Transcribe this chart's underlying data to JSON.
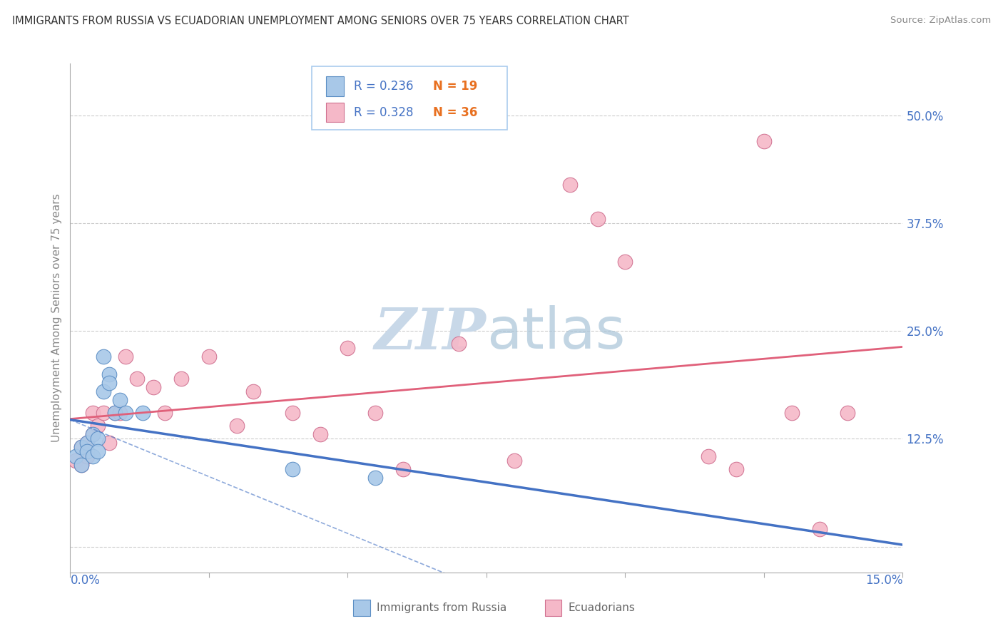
{
  "title": "IMMIGRANTS FROM RUSSIA VS ECUADORIAN UNEMPLOYMENT AMONG SENIORS OVER 75 YEARS CORRELATION CHART",
  "source": "Source: ZipAtlas.com",
  "ylabel": "Unemployment Among Seniors over 75 years",
  "ytick_vals": [
    0.0,
    0.125,
    0.25,
    0.375,
    0.5
  ],
  "ytick_labels": [
    "",
    "12.5%",
    "25.0%",
    "37.5%",
    "50.0%"
  ],
  "xlim": [
    0.0,
    0.15
  ],
  "ylim": [
    -0.03,
    0.56
  ],
  "legend_r1": "R = 0.236",
  "legend_n1": "N = 19",
  "legend_r2": "R = 0.328",
  "legend_n2": "N = 36",
  "color_blue_fill": "#A8C8E8",
  "color_blue_edge": "#5B8EC4",
  "color_pink_fill": "#F5B8C8",
  "color_pink_edge": "#D07090",
  "color_blue_line": "#4472C4",
  "color_pink_line": "#E0607A",
  "color_text_blue": "#4472C4",
  "color_text_orange": "#E87020",
  "watermark_color": "#C8D8E8",
  "blue_x": [
    0.001,
    0.002,
    0.002,
    0.003,
    0.003,
    0.004,
    0.004,
    0.005,
    0.005,
    0.006,
    0.006,
    0.007,
    0.007,
    0.008,
    0.009,
    0.01,
    0.013,
    0.04,
    0.055
  ],
  "blue_y": [
    0.105,
    0.115,
    0.095,
    0.12,
    0.11,
    0.13,
    0.105,
    0.125,
    0.11,
    0.22,
    0.18,
    0.2,
    0.19,
    0.155,
    0.17,
    0.155,
    0.155,
    0.09,
    0.08
  ],
  "pink_x": [
    0.001,
    0.002,
    0.002,
    0.003,
    0.003,
    0.004,
    0.004,
    0.005,
    0.006,
    0.007,
    0.008,
    0.009,
    0.01,
    0.012,
    0.015,
    0.017,
    0.02,
    0.025,
    0.03,
    0.033,
    0.04,
    0.045,
    0.05,
    0.055,
    0.06,
    0.07,
    0.08,
    0.09,
    0.095,
    0.1,
    0.115,
    0.12,
    0.125,
    0.13,
    0.135,
    0.14
  ],
  "pink_y": [
    0.1,
    0.115,
    0.095,
    0.12,
    0.105,
    0.13,
    0.155,
    0.14,
    0.155,
    0.12,
    0.155,
    0.155,
    0.22,
    0.195,
    0.185,
    0.155,
    0.195,
    0.22,
    0.14,
    0.18,
    0.155,
    0.13,
    0.23,
    0.155,
    0.09,
    0.235,
    0.1,
    0.42,
    0.38,
    0.33,
    0.105,
    0.09,
    0.47,
    0.155,
    0.02,
    0.155
  ]
}
